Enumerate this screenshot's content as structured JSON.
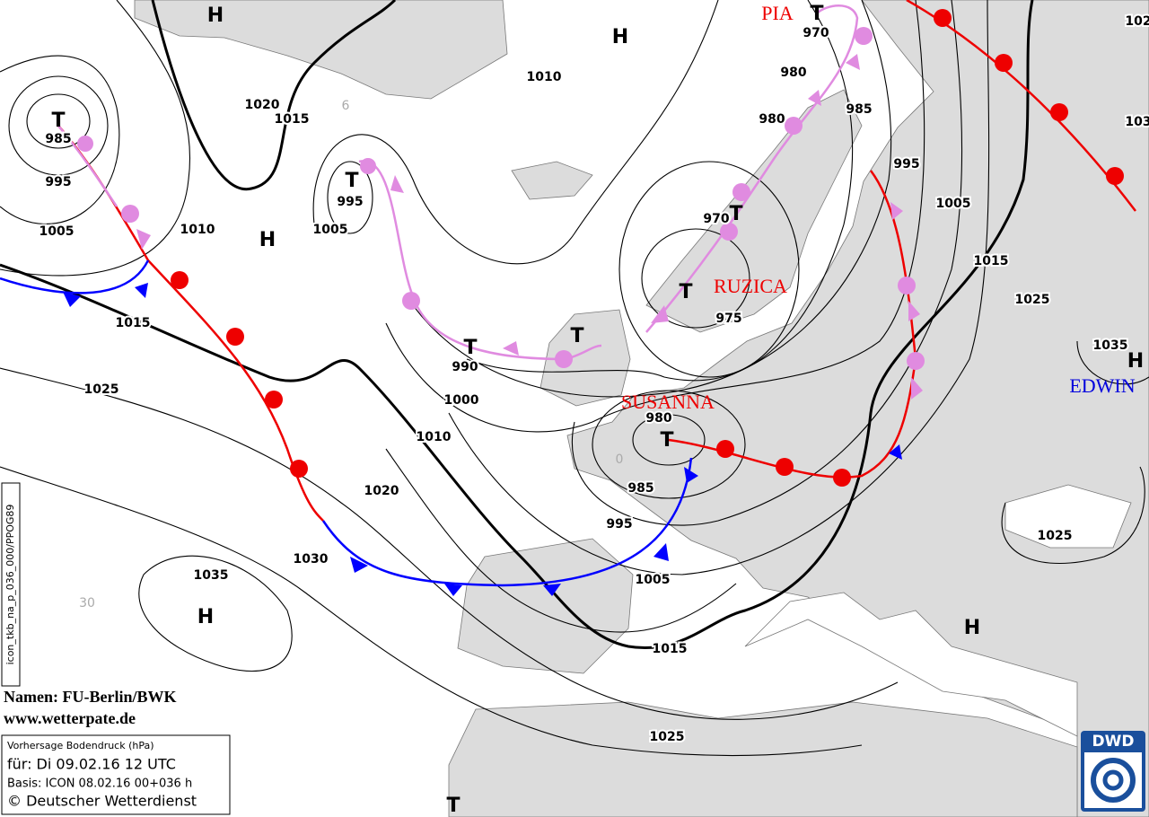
{
  "isobar_labels": [
    "985",
    "995",
    "1005",
    "1010",
    "1020",
    "1015",
    "1015",
    "1025",
    "995",
    "1005",
    "1010",
    "980",
    "970",
    "985",
    "980",
    "995",
    "1005",
    "1015",
    "1025",
    "1035",
    "970",
    "975",
    "990",
    "1000",
    "1010",
    "1020",
    "980",
    "985",
    "995",
    "1005",
    "1015",
    "1030",
    "1035",
    "1025",
    "1025",
    "102",
    "103"
  ],
  "highs": [
    "H",
    "H",
    "H",
    "H",
    "H",
    "H"
  ],
  "lows": [
    "T",
    "T",
    "T",
    "T",
    "T",
    "T",
    "T",
    "T",
    "T"
  ],
  "storm_names": [
    "PIA",
    "RUZICA",
    "SUSANNA",
    "EDWIN"
  ],
  "grid_labels": [
    "30",
    "0",
    "6"
  ],
  "sidebar": "icon_tkb_na_p_036_000/PPOG89",
  "credits": [
    "Namen: FU-Berlin/BWK",
    "www.wetterpate.de"
  ],
  "legend": {
    "title": "Vorhersage Bodendruck (hPa)",
    "valid": "für:  Di 09.02.16  12 UTC",
    "basis": "Basis: ICON  08.02.16 00+036 h",
    "copyright": "© Deutscher Wetterdienst"
  },
  "logo": "DWD"
}
